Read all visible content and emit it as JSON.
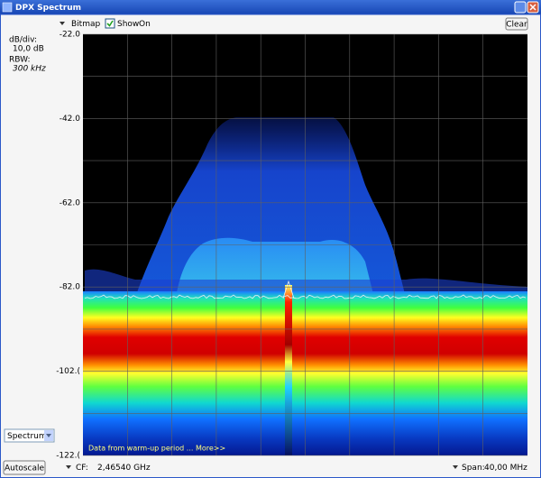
{
  "window": {
    "title": "DPX Spectrum"
  },
  "toolbar": {
    "display": "Bitmap",
    "show": "Show",
    "state": "On",
    "clear": "Clear"
  },
  "settings": {
    "db_div_label": "dB/div:",
    "db_div": "10,0 dB",
    "rbw_label": "RBW:",
    "rbw": "300 kHz"
  },
  "chart_data": {
    "type": "spectrum",
    "ylim": [
      -122,
      -22
    ],
    "yticks": [
      {
        "value": -22,
        "label": "-22.0"
      },
      {
        "value": -42,
        "label": "-42.0"
      },
      {
        "value": -62,
        "label": "-62.0"
      },
      {
        "value": -82,
        "label": "-82.0"
      },
      {
        "value": -102,
        "label": "-102.("
      },
      {
        "value": -122,
        "label": "-122.("
      }
    ],
    "grid": true,
    "annotation": "Data from warm-up period ... More>>"
  },
  "footer": {
    "view": "Spectrum",
    "autoscale": "Autoscale",
    "cf_label": "CF:",
    "cf": "2,46540 GHz",
    "span_label": "Span:",
    "span": "40,00 MHz"
  }
}
